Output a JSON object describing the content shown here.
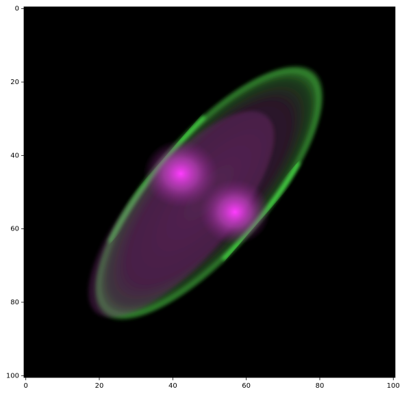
{
  "chart_data": {
    "type": "image",
    "xlim": [
      -0.5,
      100.5
    ],
    "ylim": [
      100.5,
      -0.5
    ],
    "xticks": [
      0,
      20,
      40,
      60,
      80,
      100
    ],
    "yticks": [
      0,
      20,
      40,
      60,
      80,
      100
    ]
  }
}
